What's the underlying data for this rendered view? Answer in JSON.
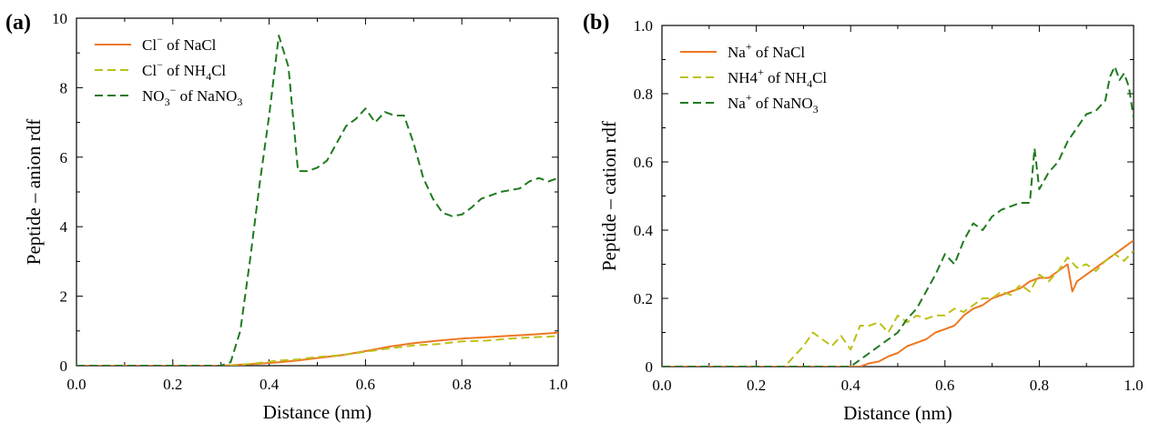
{
  "chart_data": [
    {
      "type": "line",
      "panel_label": "(a)",
      "xlabel": "Distance (nm)",
      "ylabel": "Peptide – anion rdf",
      "xlim": [
        0.0,
        1.0
      ],
      "ylim": [
        0,
        10
      ],
      "xticks": [
        "0.0",
        "0.2",
        "0.4",
        "0.6",
        "0.8",
        "1.0"
      ],
      "yticks": [
        "0",
        "2",
        "4",
        "6",
        "8",
        "10"
      ],
      "grid": false,
      "legend_position": "top-left",
      "series": [
        {
          "name": "Cl− of NaCl",
          "legend": {
            "base": "Cl",
            "sup": "−",
            "rest": " of NaCl"
          },
          "color": "#ee7722",
          "dash": "solid",
          "x": [
            0.0,
            0.3,
            0.34,
            0.38,
            0.42,
            0.46,
            0.5,
            0.55,
            0.6,
            0.65,
            0.7,
            0.75,
            0.8,
            0.85,
            0.9,
            0.95,
            1.0
          ],
          "y": [
            0.0,
            0.0,
            0.03,
            0.06,
            0.1,
            0.15,
            0.22,
            0.3,
            0.42,
            0.55,
            0.65,
            0.72,
            0.78,
            0.82,
            0.86,
            0.9,
            0.95
          ]
        },
        {
          "name": "Cl− of NH4Cl",
          "legend": {
            "base": "Cl",
            "sup": "−",
            "rest": " of NH",
            "sub": "4",
            "rest2": "Cl"
          },
          "color": "#bcc018",
          "dash": "dashed",
          "x": [
            0.0,
            0.3,
            0.34,
            0.38,
            0.42,
            0.46,
            0.5,
            0.55,
            0.6,
            0.65,
            0.7,
            0.75,
            0.8,
            0.85,
            0.9,
            0.95,
            1.0
          ],
          "y": [
            0.0,
            0.0,
            0.02,
            0.08,
            0.15,
            0.18,
            0.25,
            0.3,
            0.4,
            0.5,
            0.58,
            0.62,
            0.7,
            0.72,
            0.78,
            0.82,
            0.85
          ]
        },
        {
          "name": "NO3− of NaNO3",
          "legend": {
            "base": "NO",
            "sub": "3",
            "sup": "−",
            "rest": " of NaNO",
            "sub2": "3"
          },
          "color": "#1f7a1f",
          "dash": "dashed",
          "x": [
            0.0,
            0.3,
            0.32,
            0.34,
            0.36,
            0.38,
            0.4,
            0.42,
            0.44,
            0.46,
            0.48,
            0.5,
            0.52,
            0.54,
            0.56,
            0.58,
            0.6,
            0.62,
            0.64,
            0.66,
            0.68,
            0.7,
            0.72,
            0.74,
            0.76,
            0.78,
            0.8,
            0.82,
            0.84,
            0.86,
            0.88,
            0.9,
            0.92,
            0.94,
            0.96,
            0.98,
            1.0
          ],
          "y": [
            0.0,
            0.0,
            0.1,
            1.0,
            3.0,
            5.2,
            7.2,
            9.5,
            8.6,
            5.6,
            5.6,
            5.7,
            5.9,
            6.4,
            6.9,
            7.1,
            7.4,
            7.0,
            7.3,
            7.2,
            7.2,
            6.4,
            5.4,
            4.8,
            4.4,
            4.3,
            4.35,
            4.55,
            4.8,
            4.9,
            5.0,
            5.05,
            5.1,
            5.3,
            5.4,
            5.3,
            5.4
          ]
        }
      ]
    },
    {
      "type": "line",
      "panel_label": "(b)",
      "xlabel": "Distance (nm)",
      "ylabel": "Peptide – cation rdf",
      "xlim": [
        0.0,
        1.0
      ],
      "ylim": [
        0,
        1.0
      ],
      "xticks": [
        "0.0",
        "0.2",
        "0.4",
        "0.6",
        "0.8",
        "1.0"
      ],
      "yticks": [
        "0",
        "0.2",
        "0.4",
        "0.6",
        "0.8",
        "1.0"
      ],
      "grid": false,
      "legend_position": "top-left",
      "series": [
        {
          "name": "Na+ of NaCl",
          "legend": {
            "base": "Na",
            "sup": "+",
            "rest": " of NaCl"
          },
          "color": "#ee7722",
          "dash": "solid",
          "x": [
            0.0,
            0.42,
            0.44,
            0.46,
            0.48,
            0.5,
            0.52,
            0.54,
            0.56,
            0.58,
            0.6,
            0.62,
            0.64,
            0.66,
            0.68,
            0.7,
            0.72,
            0.74,
            0.76,
            0.78,
            0.8,
            0.82,
            0.84,
            0.86,
            0.87,
            0.88,
            0.9,
            0.92,
            0.94,
            0.96,
            0.98,
            1.0
          ],
          "y": [
            0.0,
            0.0,
            0.01,
            0.015,
            0.03,
            0.04,
            0.06,
            0.07,
            0.08,
            0.1,
            0.11,
            0.12,
            0.15,
            0.17,
            0.18,
            0.2,
            0.21,
            0.22,
            0.23,
            0.25,
            0.26,
            0.26,
            0.28,
            0.3,
            0.22,
            0.25,
            0.27,
            0.29,
            0.31,
            0.33,
            0.35,
            0.37
          ]
        },
        {
          "name": "NH4+ of NH4Cl",
          "legend": {
            "base": "NH4",
            "sup": "+",
            "rest": " of NH",
            "sub": "4",
            "rest2": "Cl"
          },
          "color": "#bcc018",
          "dash": "dashed",
          "x": [
            0.0,
            0.26,
            0.28,
            0.3,
            0.32,
            0.34,
            0.36,
            0.38,
            0.4,
            0.42,
            0.44,
            0.46,
            0.48,
            0.5,
            0.52,
            0.54,
            0.56,
            0.58,
            0.6,
            0.62,
            0.64,
            0.66,
            0.68,
            0.7,
            0.72,
            0.74,
            0.76,
            0.78,
            0.8,
            0.82,
            0.84,
            0.86,
            0.88,
            0.9,
            0.92,
            0.94,
            0.96,
            0.98,
            1.0
          ],
          "y": [
            0.0,
            0.0,
            0.03,
            0.06,
            0.1,
            0.08,
            0.06,
            0.09,
            0.05,
            0.12,
            0.12,
            0.13,
            0.1,
            0.15,
            0.13,
            0.15,
            0.14,
            0.15,
            0.15,
            0.17,
            0.16,
            0.18,
            0.2,
            0.2,
            0.22,
            0.21,
            0.24,
            0.22,
            0.27,
            0.25,
            0.28,
            0.32,
            0.29,
            0.3,
            0.28,
            0.31,
            0.33,
            0.31,
            0.34
          ]
        },
        {
          "name": "Na+ of NaNO3",
          "legend": {
            "base": "Na",
            "sup": "+",
            "rest": " of NaNO",
            "sub": "3"
          },
          "color": "#1f7a1f",
          "dash": "dashed",
          "x": [
            0.0,
            0.4,
            0.42,
            0.44,
            0.46,
            0.48,
            0.5,
            0.52,
            0.54,
            0.56,
            0.58,
            0.6,
            0.62,
            0.64,
            0.66,
            0.68,
            0.7,
            0.72,
            0.74,
            0.76,
            0.78,
            0.79,
            0.8,
            0.82,
            0.84,
            0.86,
            0.88,
            0.9,
            0.92,
            0.94,
            0.95,
            0.96,
            0.97,
            0.98,
            0.99,
            1.0
          ],
          "y": [
            0.0,
            0.0,
            0.02,
            0.04,
            0.06,
            0.08,
            0.1,
            0.14,
            0.17,
            0.22,
            0.27,
            0.33,
            0.3,
            0.37,
            0.42,
            0.4,
            0.44,
            0.46,
            0.47,
            0.48,
            0.48,
            0.64,
            0.52,
            0.57,
            0.6,
            0.66,
            0.7,
            0.74,
            0.75,
            0.78,
            0.85,
            0.88,
            0.84,
            0.86,
            0.82,
            0.73
          ]
        }
      ]
    }
  ]
}
